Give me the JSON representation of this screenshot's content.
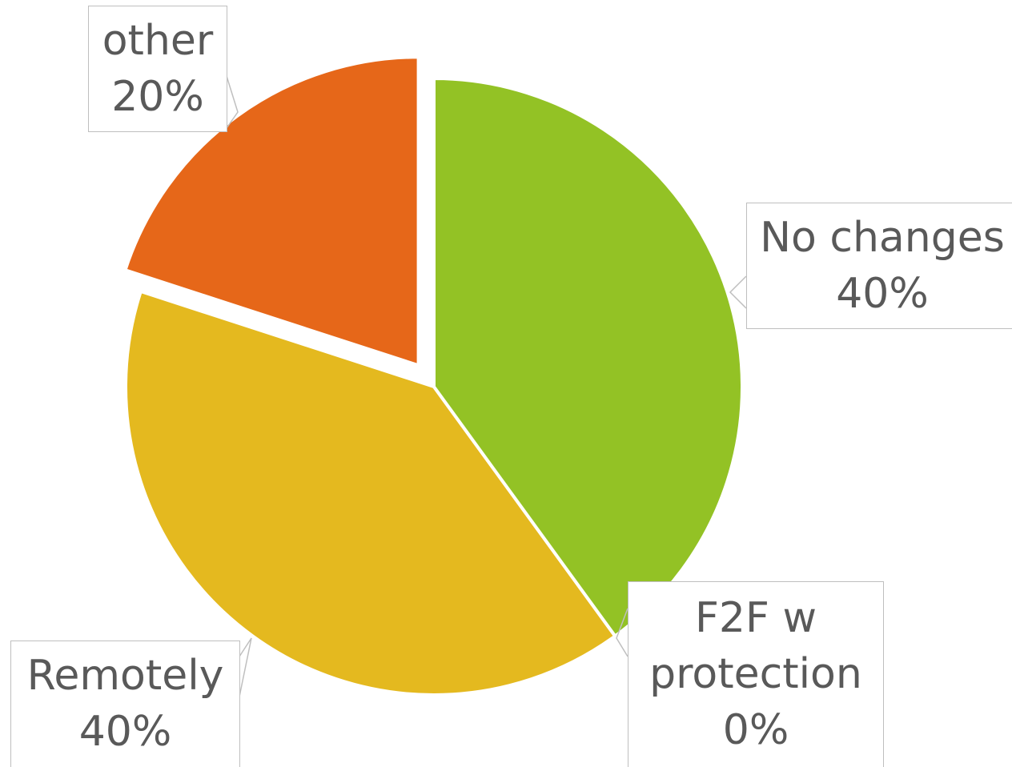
{
  "chart_data": {
    "type": "pie",
    "categories": [
      "No changes",
      "F2F w protection",
      "Remotely",
      "other"
    ],
    "values": [
      40,
      0,
      40,
      20
    ],
    "value_labels": [
      "40%",
      "0%",
      "40%",
      "20%"
    ],
    "colors": [
      "#93c225",
      "#9e480e",
      "#e4b91f",
      "#e66719"
    ],
    "exploded": [
      false,
      false,
      false,
      true
    ]
  }
}
